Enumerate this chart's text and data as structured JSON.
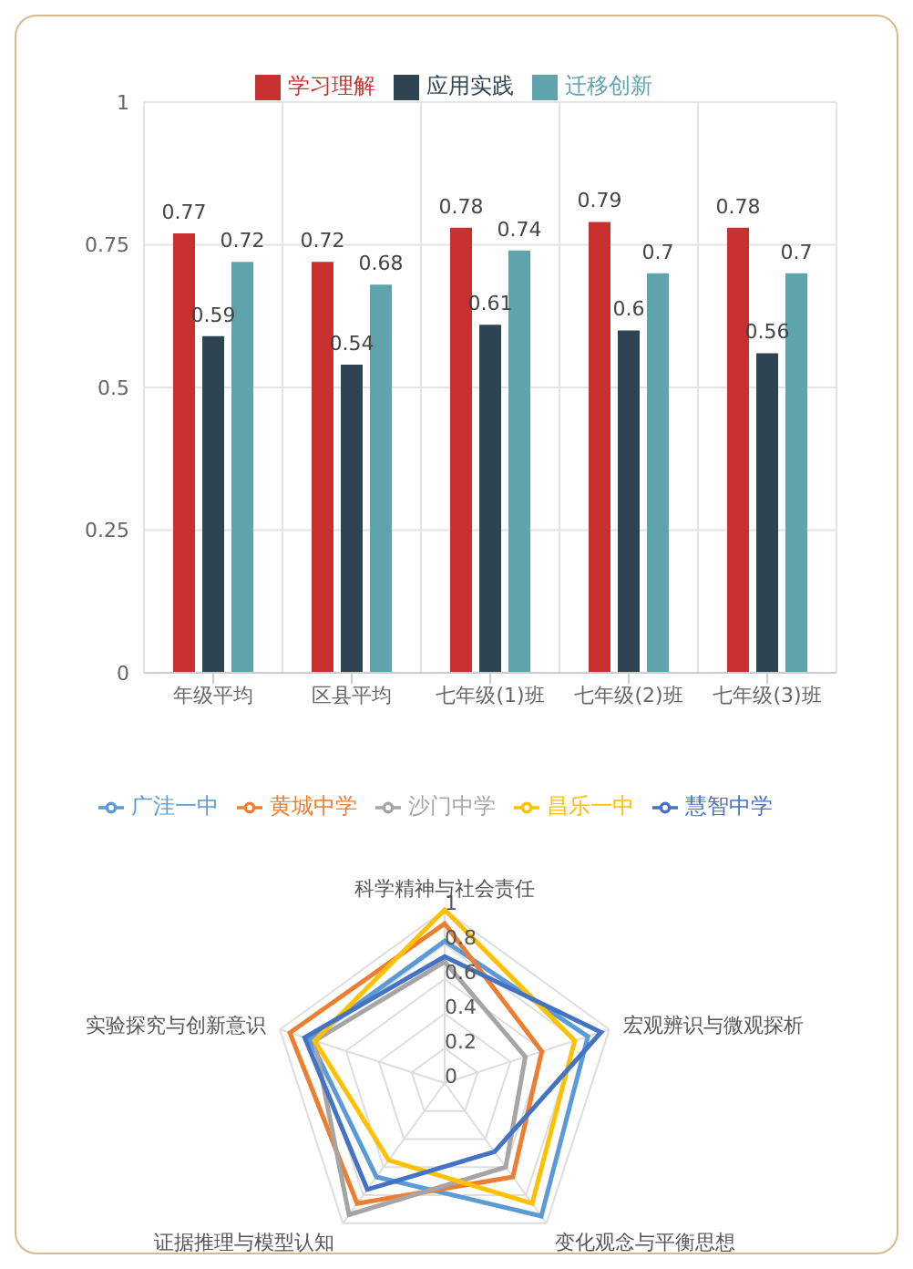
{
  "chart_data": [
    {
      "type": "bar",
      "categories": [
        "年级平均",
        "区县平均",
        "七年级(1)班",
        "七年级(2)班",
        "七年级(3)班"
      ],
      "series": [
        {
          "name": "学习理解",
          "color": "#c8312f",
          "values": [
            0.77,
            0.72,
            0.78,
            0.79,
            0.78
          ]
        },
        {
          "name": "应用实践",
          "color": "#2e4453",
          "values": [
            0.59,
            0.54,
            0.61,
            0.6,
            0.56
          ]
        },
        {
          "name": "迁移创新",
          "color": "#5fa3ad",
          "values": [
            0.72,
            0.68,
            0.74,
            0.7,
            0.7
          ]
        }
      ],
      "ylim": [
        0,
        1
      ],
      "yticks": [
        0,
        0.25,
        0.5,
        0.75,
        1
      ],
      "grid": true,
      "legend": "top",
      "data_labels": true
    },
    {
      "type": "radar",
      "categories": [
        "科学精神与社会责任",
        "宏观辨识与微观探析",
        "变化观念与平衡思想",
        "证据推理与模型认知",
        "实验探究与创新意识"
      ],
      "series": [
        {
          "name": "广洼一中",
          "color": "#5b9bd5",
          "values": [
            0.82,
            0.87,
            0.95,
            0.67,
            0.82
          ]
        },
        {
          "name": "黄城中学",
          "color": "#ed7d31",
          "values": [
            0.92,
            0.59,
            0.67,
            0.86,
            0.94
          ]
        },
        {
          "name": "沙门中学",
          "color": "#a5a5a5",
          "values": [
            0.7,
            0.49,
            0.6,
            0.94,
            0.79
          ]
        },
        {
          "name": "昌乐一中",
          "color": "#ffc000",
          "values": [
            1,
            0.79,
            0.86,
            0.55,
            0.79
          ]
        },
        {
          "name": "慧智中学",
          "color": "#4472c4",
          "values": [
            0.73,
            0.95,
            0.49,
            0.76,
            0.85
          ]
        }
      ],
      "ylim": [
        0,
        1
      ],
      "yticks": [
        0,
        0.2,
        0.4,
        0.6,
        0.8,
        1
      ],
      "grid": true,
      "legend": "top"
    }
  ]
}
